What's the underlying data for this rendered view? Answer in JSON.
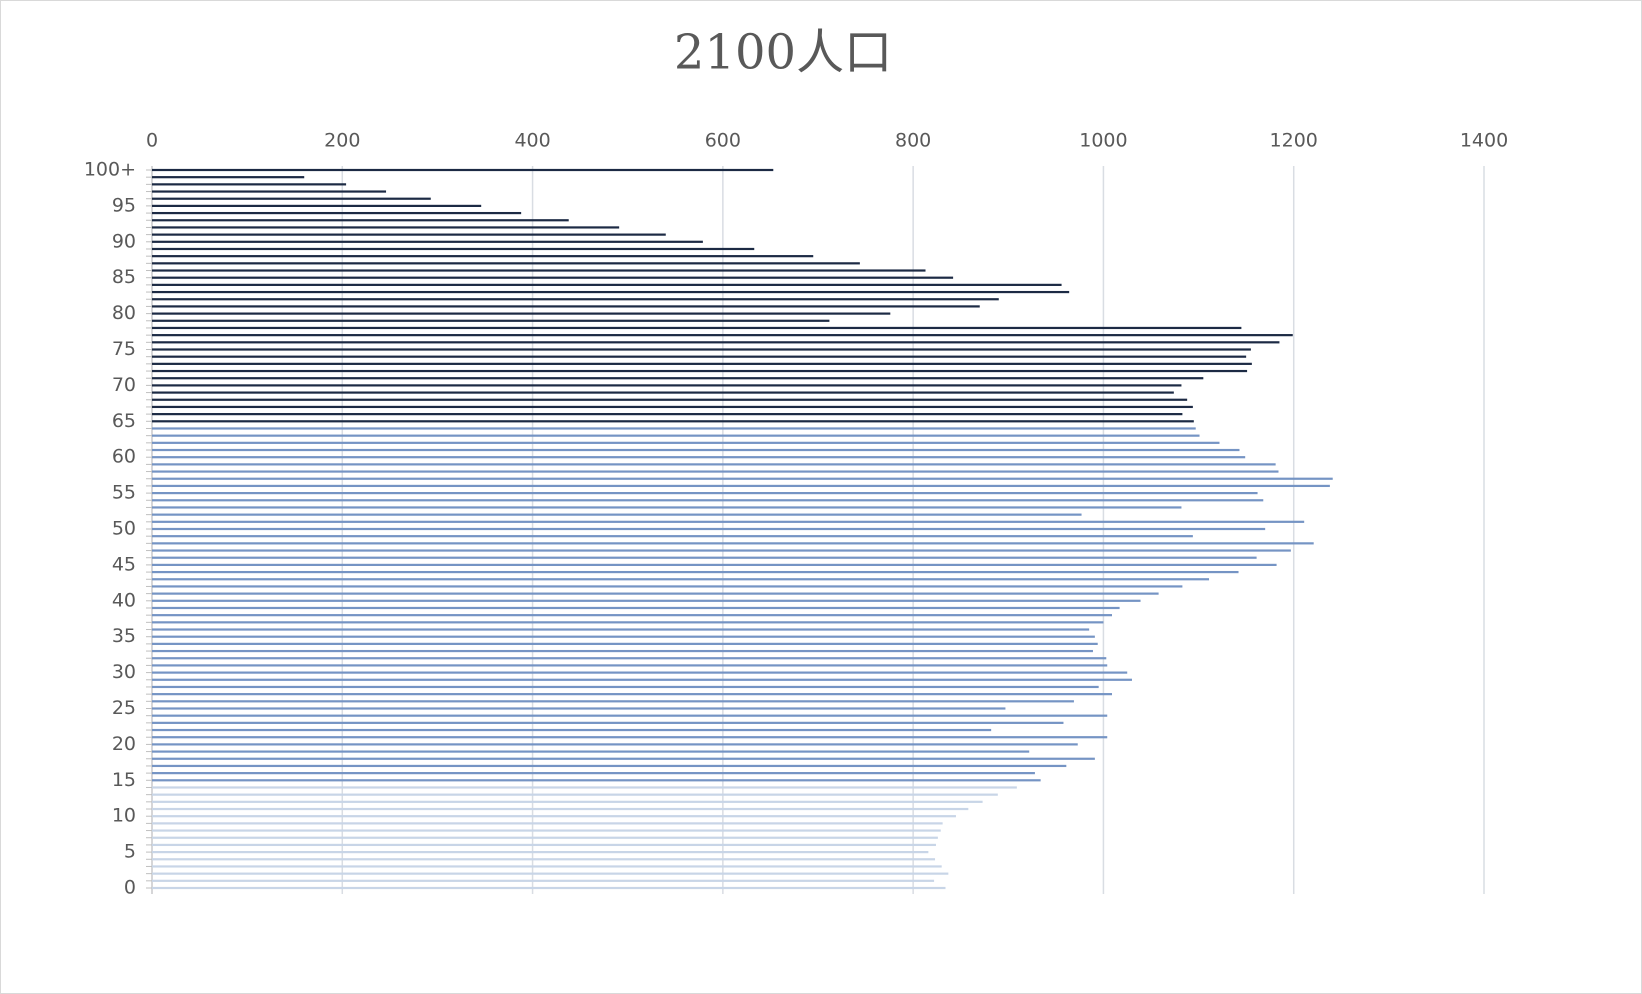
{
  "chart_data": {
    "type": "bar",
    "orientation": "horizontal",
    "title": "2100人口",
    "categories": [
      "0",
      null,
      null,
      null,
      null,
      "5",
      null,
      null,
      null,
      null,
      "10",
      null,
      null,
      null,
      null,
      "15",
      null,
      null,
      null,
      null,
      "20",
      null,
      null,
      null,
      null,
      "25",
      null,
      null,
      null,
      null,
      "30",
      null,
      null,
      null,
      null,
      "35",
      null,
      null,
      null,
      null,
      "40",
      null,
      null,
      null,
      null,
      "45",
      null,
      null,
      null,
      null,
      "50",
      null,
      null,
      null,
      null,
      "55",
      null,
      null,
      null,
      null,
      "60",
      null,
      null,
      null,
      null,
      "65",
      null,
      null,
      null,
      null,
      "70",
      null,
      null,
      null,
      null,
      "75",
      null,
      null,
      null,
      null,
      "80",
      null,
      null,
      null,
      null,
      "85",
      null,
      null,
      null,
      null,
      "90",
      null,
      null,
      null,
      null,
      "95",
      null,
      null,
      null,
      null,
      "100+"
    ],
    "values": [
      834,
      822,
      837,
      830,
      823,
      816,
      824,
      826,
      829,
      831,
      845,
      858,
      873,
      889,
      909,
      934,
      928,
      961,
      991,
      922,
      973,
      1004,
      882,
      958,
      1004,
      897,
      969,
      1009,
      995,
      1030,
      1025,
      1004,
      1003,
      989,
      994,
      991,
      985,
      1000,
      1009,
      1017,
      1039,
      1058,
      1083,
      1111,
      1142,
      1182,
      1161,
      1197,
      1221,
      1094,
      1170,
      1211,
      977,
      1082,
      1168,
      1162,
      1238,
      1241,
      1184,
      1181,
      1149,
      1143,
      1122,
      1101,
      1097,
      1095,
      1083,
      1094,
      1088,
      1074,
      1082,
      1105,
      1151,
      1156,
      1150,
      1155,
      1185,
      1199,
      1145,
      712,
      776,
      870,
      890,
      964,
      956,
      842,
      813,
      744,
      695,
      633,
      579,
      540,
      491,
      438,
      388,
      346,
      293,
      246,
      204,
      160,
      653
    ],
    "colors": [
      "#c8d5e7",
      "#c8d5e7",
      "#c8d5e7",
      "#c8d5e7",
      "#c8d5e7",
      "#c8d5e7",
      "#c8d5e7",
      "#c8d5e7",
      "#c8d5e7",
      "#c8d5e7",
      "#c8d5e7",
      "#c8d5e7",
      "#c8d5e7",
      "#c8d5e7",
      "#c8d5e7",
      "#7594c4",
      "#7594c4",
      "#7594c4",
      "#7594c4",
      "#7594c4",
      "#7594c4",
      "#7594c4",
      "#7594c4",
      "#7594c4",
      "#7594c4",
      "#7594c4",
      "#7594c4",
      "#7594c4",
      "#7594c4",
      "#7594c4",
      "#7594c4",
      "#7594c4",
      "#7594c4",
      "#7594c4",
      "#7594c4",
      "#7594c4",
      "#7594c4",
      "#7594c4",
      "#7594c4",
      "#7594c4",
      "#7594c4",
      "#7594c4",
      "#7594c4",
      "#7594c4",
      "#7594c4",
      "#7594c4",
      "#7594c4",
      "#7594c4",
      "#7594c4",
      "#7594c4",
      "#7594c4",
      "#7594c4",
      "#7594c4",
      "#7594c4",
      "#7594c4",
      "#7594c4",
      "#7594c4",
      "#7594c4",
      "#7594c4",
      "#7594c4",
      "#7594c4",
      "#7594c4",
      "#7594c4",
      "#7594c4",
      "#7594c4",
      "#1c2a44",
      "#1c2a44",
      "#1c2a44",
      "#1c2a44",
      "#1c2a44",
      "#1c2a44",
      "#1c2a44",
      "#1c2a44",
      "#1c2a44",
      "#1c2a44",
      "#1c2a44",
      "#1c2a44",
      "#1c2a44",
      "#1c2a44",
      "#1c2a44",
      "#1c2a44",
      "#1c2a44",
      "#1c2a44",
      "#1c2a44",
      "#1c2a44",
      "#1c2a44",
      "#1c2a44",
      "#1c2a44",
      "#1c2a44",
      "#1c2a44",
      "#1c2a44",
      "#1c2a44",
      "#1c2a44",
      "#1c2a44",
      "#1c2a44",
      "#1c2a44",
      "#1c2a44",
      "#1c2a44",
      "#1c2a44",
      "#1c2a44",
      "#1c2a44"
    ],
    "xlim": [
      0,
      1400
    ],
    "xticks": [
      0,
      200,
      400,
      600,
      800,
      1000,
      1200,
      1400
    ],
    "grid": true
  }
}
